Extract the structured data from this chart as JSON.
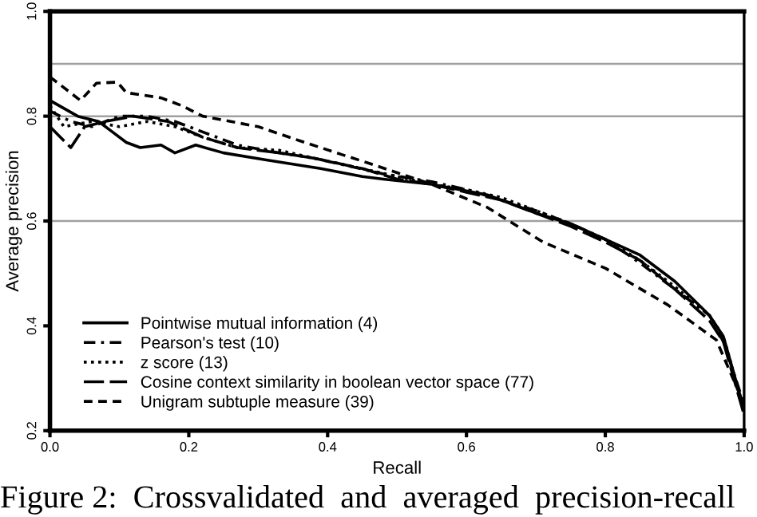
{
  "chart_data": {
    "type": "line",
    "xlabel": "Recall",
    "ylabel": "Average precision",
    "xlim": [
      0.0,
      1.0
    ],
    "ylim": [
      0.2,
      1.0
    ],
    "xticks": [
      {
        "value": 0.0,
        "label": "0.0"
      },
      0.2,
      0.4,
      0.6,
      0.8,
      {
        "value": 1.0,
        "label": "1.0"
      }
    ],
    "yticks": [
      0.2,
      0.4,
      0.6,
      0.8,
      {
        "value": 1.0,
        "label": "1.0"
      }
    ],
    "grid": false,
    "legend": "bottom left",
    "ref_lines": [
      {
        "axis": "y",
        "value": 0.9,
        "color": "#a0a0a0"
      },
      {
        "axis": "y",
        "value": 0.8,
        "color": "#a0a0a0"
      },
      {
        "axis": "y",
        "value": 0.6,
        "color": "#a0a0a0"
      }
    ],
    "annotations": [
      "Figure 2:  Crossvalidated  and  averaged  precision-recall"
    ],
    "series": [
      {
        "name": "Pointwise mutual information (4)",
        "color": "#000000",
        "line_style": "solid",
        "x": [
          0,
          0.04,
          0.07,
          0.09,
          0.11,
          0.13,
          0.16,
          0.18,
          0.21,
          0.25,
          0.31,
          0.39,
          0.45,
          0.48,
          0.55,
          0.63,
          0.7,
          0.75,
          0.8,
          0.85,
          0.9,
          0.95,
          0.97,
          1.0
        ],
        "values": [
          0.83,
          0.8,
          0.79,
          0.77,
          0.75,
          0.74,
          0.745,
          0.73,
          0.745,
          0.73,
          0.717,
          0.7,
          0.685,
          0.68,
          0.67,
          0.65,
          0.615,
          0.595,
          0.565,
          0.535,
          0.485,
          0.42,
          0.38,
          0.24
        ]
      },
      {
        "name": "Pearson's test (10)",
        "color": "#000000",
        "line_style": "dashdot",
        "x": [
          0,
          0.03,
          0.06,
          0.1,
          0.14,
          0.18,
          0.22,
          0.27,
          0.33,
          0.38,
          0.43,
          0.48,
          0.55,
          0.6,
          0.65,
          0.7,
          0.75,
          0.8,
          0.85,
          0.9,
          0.95,
          0.97,
          1.0
        ],
        "values": [
          0.81,
          0.79,
          0.78,
          0.8,
          0.8,
          0.79,
          0.77,
          0.745,
          0.73,
          0.72,
          0.705,
          0.69,
          0.675,
          0.66,
          0.64,
          0.62,
          0.595,
          0.565,
          0.52,
          0.47,
          0.42,
          0.37,
          0.25
        ]
      },
      {
        "name": "z score (13)",
        "color": "#000000",
        "line_style": "dotted",
        "x": [
          0,
          0.02,
          0.06,
          0.1,
          0.14,
          0.18,
          0.22,
          0.27,
          0.33,
          0.38,
          0.45,
          0.5,
          0.55,
          0.6,
          0.65,
          0.7,
          0.75,
          0.8,
          0.85,
          0.9,
          0.95,
          0.97,
          1.0
        ],
        "values": [
          0.82,
          0.78,
          0.79,
          0.78,
          0.79,
          0.78,
          0.76,
          0.74,
          0.735,
          0.72,
          0.7,
          0.685,
          0.67,
          0.66,
          0.645,
          0.62,
          0.595,
          0.565,
          0.525,
          0.475,
          0.42,
          0.38,
          0.24
        ]
      },
      {
        "name": "Cosine context similarity in boolean vector space (77)",
        "color": "#000000",
        "line_style": "longdash",
        "x": [
          0,
          0.03,
          0.05,
          0.08,
          0.12,
          0.17,
          0.22,
          0.27,
          0.33,
          0.38,
          0.45,
          0.5,
          0.55,
          0.6,
          0.65,
          0.7,
          0.75,
          0.8,
          0.85,
          0.9,
          0.95,
          0.97,
          1.0
        ],
        "values": [
          0.78,
          0.74,
          0.78,
          0.79,
          0.8,
          0.79,
          0.76,
          0.74,
          0.73,
          0.72,
          0.7,
          0.68,
          0.67,
          0.655,
          0.64,
          0.615,
          0.59,
          0.56,
          0.525,
          0.47,
          0.41,
          0.37,
          0.23
        ]
      },
      {
        "name": "Unigram subtuple measure (39)",
        "color": "#000000",
        "line_style": "dashed",
        "x": [
          0,
          0.044,
          0.067,
          0.097,
          0.11,
          0.16,
          0.19,
          0.22,
          0.3,
          0.36,
          0.42,
          0.46,
          0.55,
          0.63,
          0.71,
          0.8,
          0.89,
          0.96,
          1.0
        ],
        "values": [
          0.875,
          0.83,
          0.863,
          0.865,
          0.845,
          0.835,
          0.82,
          0.8,
          0.78,
          0.753,
          0.727,
          0.71,
          0.67,
          0.626,
          0.56,
          0.51,
          0.44,
          0.373,
          0.25
        ]
      }
    ]
  }
}
